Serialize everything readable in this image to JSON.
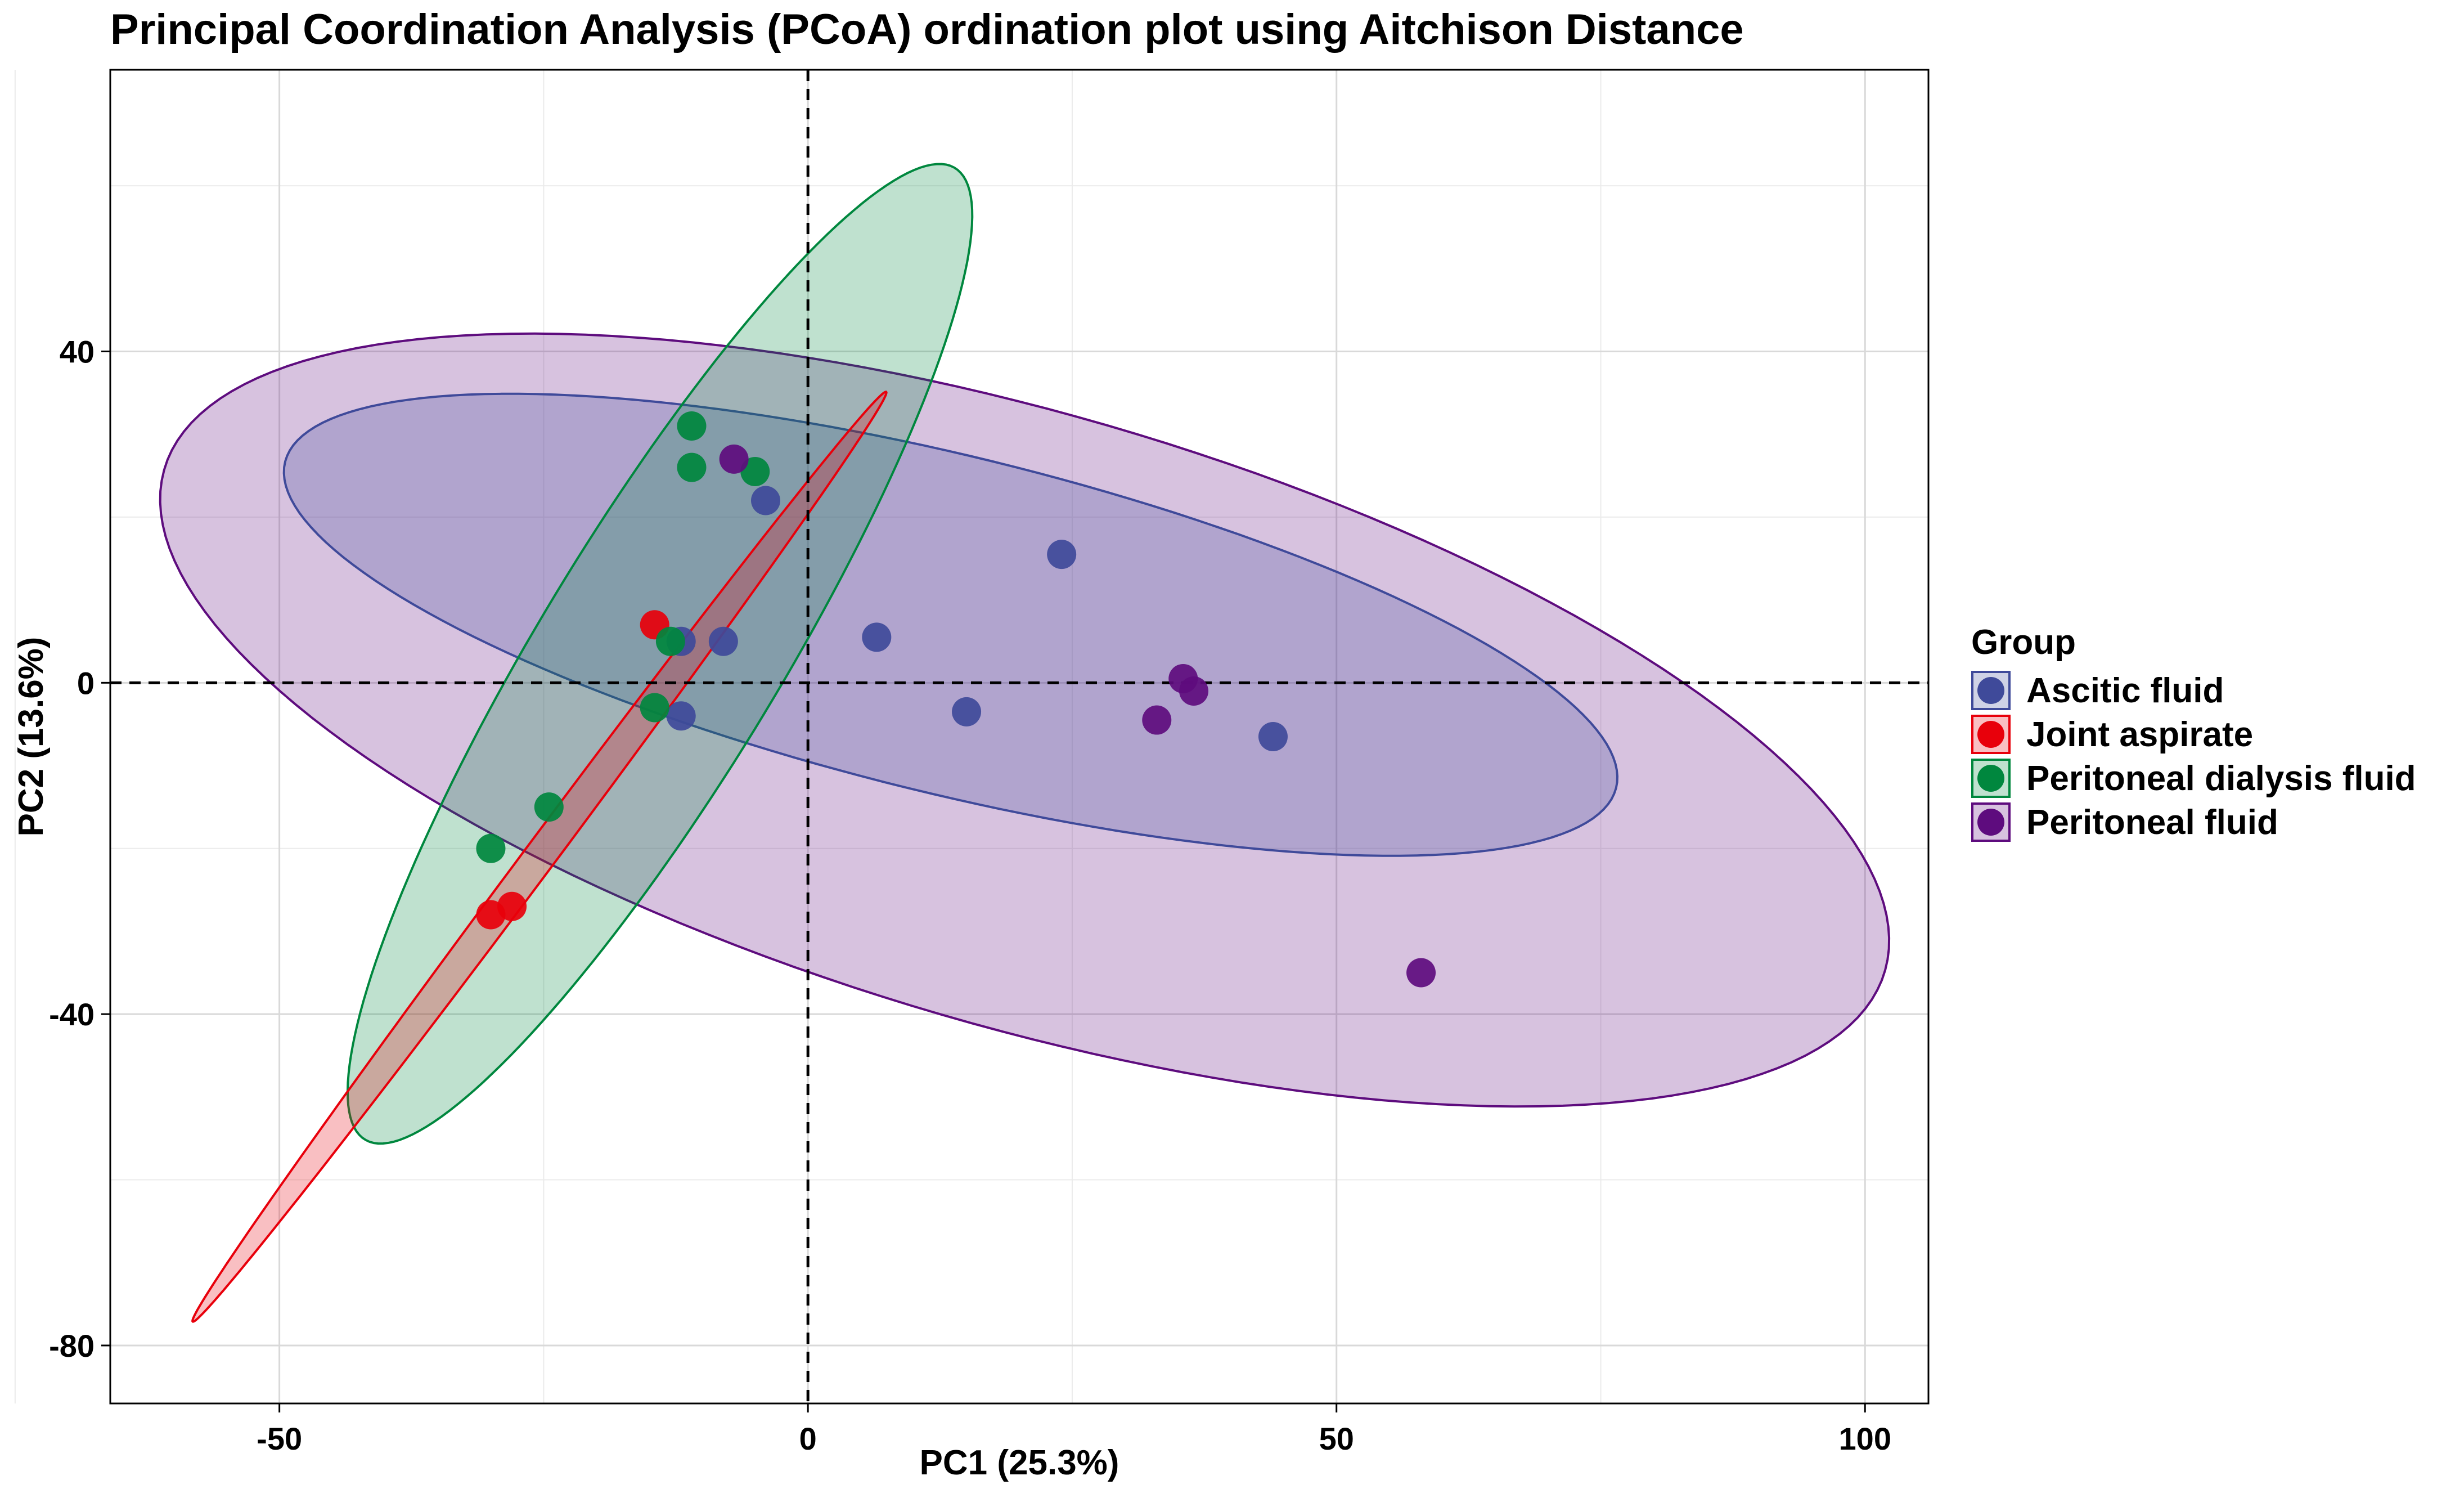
{
  "chart_data": {
    "type": "scatter",
    "title": "Principal Coordination Analysis (PCoA) ordination plot using Aitchison Distance",
    "xlabel": "PC1 (25.3%)",
    "ylabel": "PC2 (13.6%)",
    "xlim": [
      -66,
      106
    ],
    "ylim": [
      -87,
      74
    ],
    "x_ticks": [
      -50,
      0,
      50,
      100
    ],
    "x_tick_labels": [
      "-50",
      "0",
      "50",
      "100"
    ],
    "y_ticks": [
      -80,
      -40,
      0,
      40
    ],
    "y_tick_labels": [
      "-80",
      "-40",
      "0",
      "40"
    ],
    "x_minor_grid": [
      -75,
      -25,
      25,
      75
    ],
    "y_minor_grid": [
      -60,
      -20,
      20,
      60
    ],
    "grid": true,
    "reference_lines": {
      "x": 0,
      "y": 0,
      "style": "dashed"
    },
    "legend": {
      "title": "Group",
      "position": "right"
    },
    "series": [
      {
        "name": "Ascitic fluid",
        "color": "#3F4A9A",
        "ellipse": {
          "cx": 13.5,
          "cy": 7,
          "rx": 66,
          "ry": 20,
          "angle_deg": -18
        },
        "points": [
          {
            "x": -4,
            "y": 22
          },
          {
            "x": -12,
            "y": 5
          },
          {
            "x": -8,
            "y": 5
          },
          {
            "x": -12,
            "y": -4
          },
          {
            "x": 6.5,
            "y": 5.5
          },
          {
            "x": 15,
            "y": -3.5
          },
          {
            "x": 24,
            "y": 15.5
          },
          {
            "x": 44,
            "y": -6.5
          }
        ]
      },
      {
        "name": "Joint aspirate",
        "color": "#E8000B",
        "ellipse": {
          "cx": -25.4,
          "cy": -21,
          "rx": 65,
          "ry": 1.6,
          "angle_deg": 59.7
        },
        "points": [
          {
            "x": -14.5,
            "y": 7
          },
          {
            "x": -28,
            "y": -27
          },
          {
            "x": -30,
            "y": -28
          }
        ]
      },
      {
        "name": "Peritoneal dialysis fluid",
        "color": "#00873E",
        "ellipse": {
          "cx": -14,
          "cy": 3.5,
          "rx": 65,
          "ry": 12,
          "angle_deg": 65
        },
        "points": [
          {
            "x": -11,
            "y": 31
          },
          {
            "x": -11,
            "y": 26
          },
          {
            "x": -5,
            "y": 25.5
          },
          {
            "x": -13,
            "y": 5
          },
          {
            "x": -14.5,
            "y": -3
          },
          {
            "x": -24.5,
            "y": -15
          },
          {
            "x": -30,
            "y": -20
          }
        ]
      },
      {
        "name": "Peritoneal fluid",
        "color": "#5E0C7E",
        "ellipse": {
          "cx": 20.5,
          "cy": -4.5,
          "rx": 87,
          "ry": 36,
          "angle_deg": -22
        },
        "points": [
          {
            "x": -7,
            "y": 27
          },
          {
            "x": 35.5,
            "y": 0.5
          },
          {
            "x": 36.5,
            "y": -1
          },
          {
            "x": 33,
            "y": -4.5
          },
          {
            "x": 58,
            "y": -35
          }
        ]
      }
    ]
  }
}
